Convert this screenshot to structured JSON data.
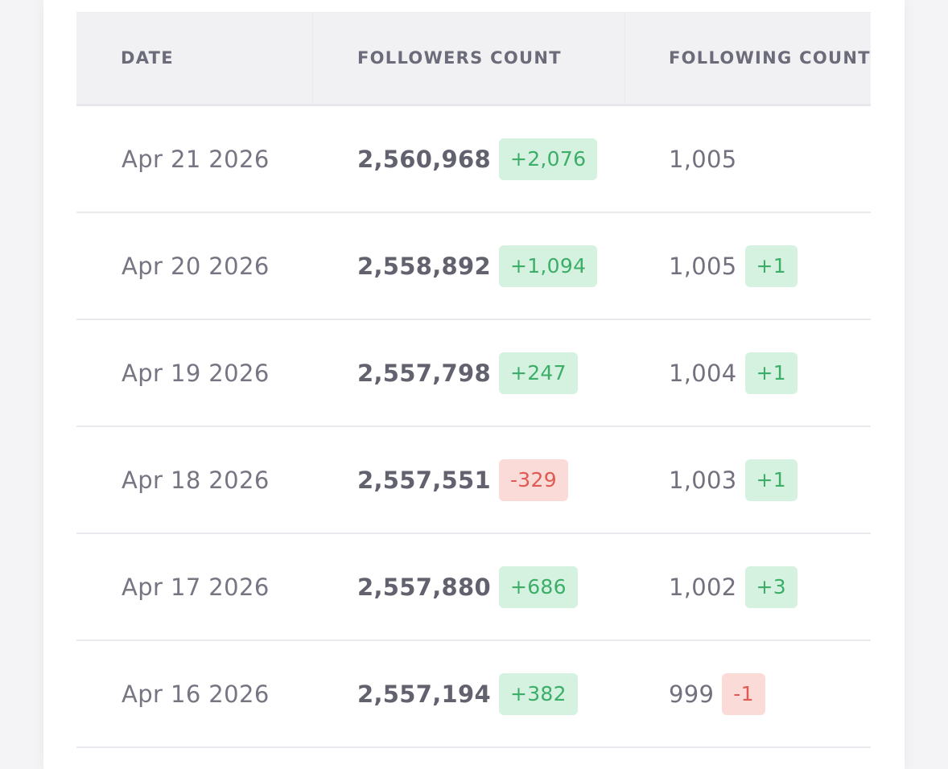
{
  "table": {
    "headers": {
      "date": "DATE",
      "followers": "FOLLOWERS COUNT",
      "following": "FOLLOWING COUNT"
    },
    "rows": [
      {
        "date": "Apr 21 2026",
        "followers": "2,560,968",
        "followers_delta": "+2,076",
        "followers_delta_sign": "pos",
        "following": "1,005",
        "following_delta": "",
        "following_delta_sign": ""
      },
      {
        "date": "Apr 20 2026",
        "followers": "2,558,892",
        "followers_delta": "+1,094",
        "followers_delta_sign": "pos",
        "following": "1,005",
        "following_delta": "+1",
        "following_delta_sign": "pos"
      },
      {
        "date": "Apr 19 2026",
        "followers": "2,557,798",
        "followers_delta": "+247",
        "followers_delta_sign": "pos",
        "following": "1,004",
        "following_delta": "+1",
        "following_delta_sign": "pos"
      },
      {
        "date": "Apr 18 2026",
        "followers": "2,557,551",
        "followers_delta": "-329",
        "followers_delta_sign": "neg",
        "following": "1,003",
        "following_delta": "+1",
        "following_delta_sign": "pos"
      },
      {
        "date": "Apr 17 2026",
        "followers": "2,557,880",
        "followers_delta": "+686",
        "followers_delta_sign": "pos",
        "following": "1,002",
        "following_delta": "+3",
        "following_delta_sign": "pos"
      },
      {
        "date": "Apr 16 2026",
        "followers": "2,557,194",
        "followers_delta": "+382",
        "followers_delta_sign": "pos",
        "following": "999",
        "following_delta": "-1",
        "following_delta_sign": "neg"
      }
    ]
  },
  "colors": {
    "positive_text": "#3cae68",
    "positive_bg": "#d5f2e0",
    "negative_text": "#de5a52",
    "negative_bg": "#fadbd8",
    "header_bg": "#f1f1f4"
  }
}
